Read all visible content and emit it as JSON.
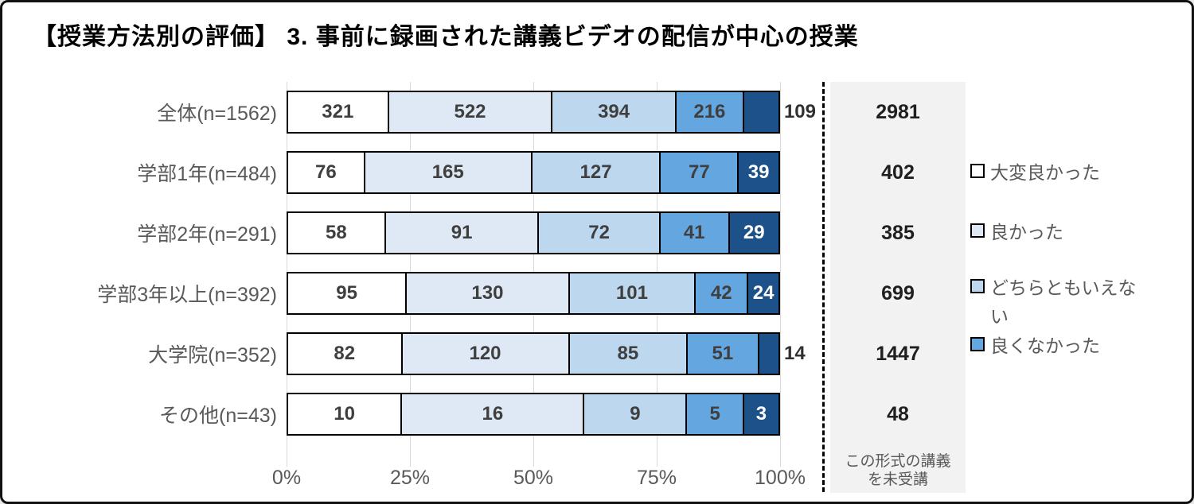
{
  "title": "【授業方法別の評価】 3. 事前に録画された講義ビデオの配信が中心の授業",
  "colors": {
    "segment_border": "#000000",
    "grid": "#d9d9d9",
    "side_panel_bg": "#f2f2f2",
    "axis_text": "#595959",
    "value_text": "#3f3f3f",
    "dark_segment_text": "#ffffff"
  },
  "chart_data": {
    "type": "bar",
    "orientation": "horizontal",
    "stacked": true,
    "normalized_to_100_percent": true,
    "grid": true,
    "legend_position": "right",
    "x_axis": {
      "ticks": [
        "0%",
        "25%",
        "50%",
        "75%",
        "100%"
      ],
      "range": [
        0,
        100
      ]
    },
    "categories": [
      "全体(n=1562)",
      "学部1年(n=484)",
      "学部2年(n=291)",
      "学部3年以上(n=392)",
      "大学院(n=352)",
      "その他(n=43)"
    ],
    "row_totals": [
      1562,
      484,
      291,
      392,
      352,
      43
    ],
    "series": [
      {
        "name": "大変良かった",
        "color": "#ffffff",
        "in_legend": true,
        "values": [
          321,
          76,
          58,
          95,
          82,
          10
        ]
      },
      {
        "name": "良かった",
        "color": "#dee9f5",
        "in_legend": true,
        "values": [
          522,
          165,
          91,
          130,
          120,
          16
        ]
      },
      {
        "name": "どちらともいえない",
        "color": "#bdd7ee",
        "in_legend": true,
        "values": [
          394,
          127,
          72,
          101,
          85,
          9
        ]
      },
      {
        "name": "良くなかった",
        "color": "#64a6e0",
        "in_legend": true,
        "values": [
          216,
          77,
          41,
          42,
          51,
          5
        ]
      },
      {
        "name": "",
        "color": "#1c5289",
        "in_legend": false,
        "values": [
          109,
          39,
          29,
          24,
          14,
          3
        ]
      }
    ],
    "last_segment_label_outside": [
      true,
      false,
      false,
      false,
      true,
      false
    ],
    "side_panel": {
      "values": [
        2981,
        402,
        385,
        699,
        1447,
        48
      ],
      "note_lines": [
        "この形式の講義",
        "を未受講"
      ]
    }
  }
}
